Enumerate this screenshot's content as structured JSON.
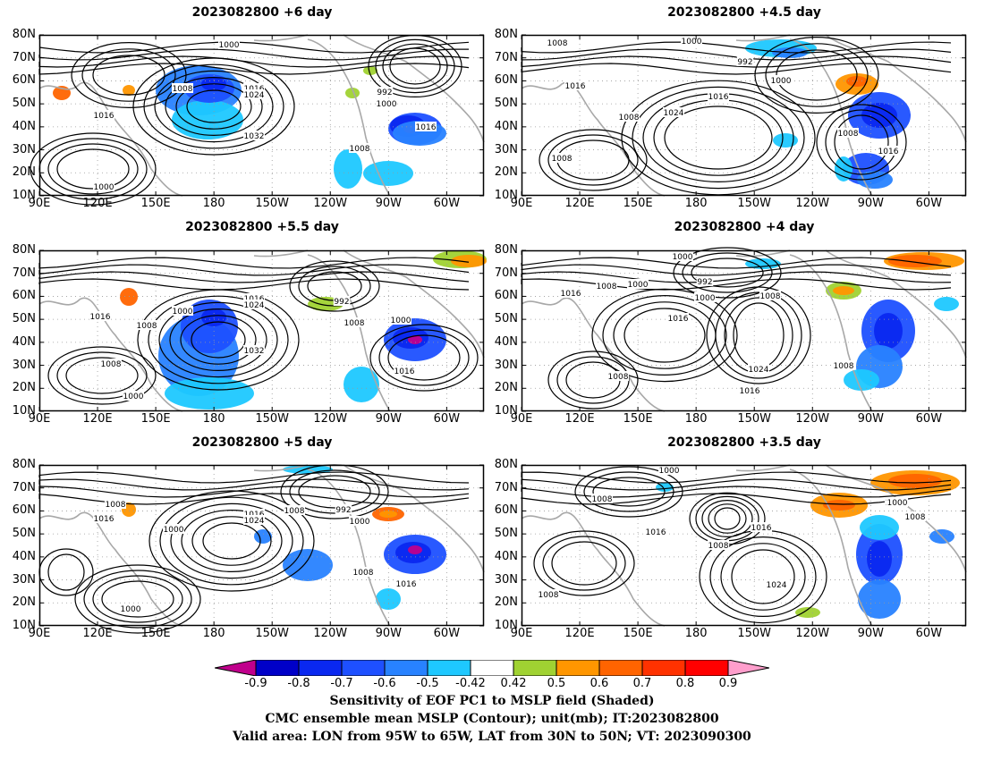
{
  "panels": [
    {
      "id": "p1",
      "title": "2023082800  +6 day",
      "contour_labels": [
        "1000",
        "1016",
        "1024",
        "1008",
        "1016",
        "1032",
        "992",
        "1000",
        "1008",
        "1016",
        "1000"
      ]
    },
    {
      "id": "p2",
      "title": "2023082800  +4.5 day",
      "contour_labels": [
        "1008",
        "1000",
        "992",
        "1016",
        "1016",
        "1000",
        "1008",
        "1024",
        "1008",
        "1008",
        "1016"
      ]
    },
    {
      "id": "p3",
      "title": "2023082800  +5.5 day",
      "contour_labels": [
        "1016",
        "1008",
        "1000",
        "1016",
        "1024",
        "1032",
        "992",
        "1008",
        "1000",
        "1016",
        "1008",
        "1000"
      ]
    },
    {
      "id": "p4",
      "title": "2023082800  +4 day",
      "contour_labels": [
        "1000",
        "1016",
        "1008",
        "992",
        "1000",
        "1008",
        "1016",
        "1000",
        "1024",
        "1008",
        "1016",
        "1008"
      ]
    },
    {
      "id": "p5",
      "title": "2023082800  +5 day",
      "contour_labels": [
        "1008",
        "1016",
        "1000",
        "1016",
        "1024",
        "1008",
        "992",
        "1000",
        "1008",
        "1016",
        "1000"
      ]
    },
    {
      "id": "p6",
      "title": "2023082800  +3.5 day",
      "contour_labels": [
        "1000",
        "1000",
        "1008",
        "1016",
        "1008",
        "1016",
        "1024",
        "1000",
        "1008",
        "1008"
      ]
    }
  ],
  "lat_labels": [
    "80N",
    "70N",
    "60N",
    "50N",
    "40N",
    "30N",
    "20N",
    "10N"
  ],
  "lon_labels": [
    "90E",
    "120E",
    "150E",
    "180",
    "150W",
    "120W",
    "90W",
    "60W"
  ],
  "colorbar": {
    "ticks": [
      "-0.9",
      "-0.8",
      "-0.7",
      "-0.6",
      "-0.5",
      "-0.42",
      "0.42",
      "0.5",
      "0.6",
      "0.7",
      "0.8",
      "0.9"
    ],
    "colors": [
      "#c0008c",
      "#0000c8",
      "#0a28f0",
      "#1e50ff",
      "#2882ff",
      "#1ec8ff",
      "#ffffff",
      "#a0d232",
      "#ff9600",
      "#ff6400",
      "#ff3200",
      "#ff0000",
      "#ff9ecc"
    ]
  },
  "caption": {
    "line1": "Sensitivity of EOF PC1 to MSLP field (Shaded)",
    "line2": "CMC ensemble mean MSLP (Contour); unit(mb); IT:2023082800",
    "line3": "Valid area: LON from 95W to 65W, LAT from 30N to 50N; VT: 2023090300"
  }
}
